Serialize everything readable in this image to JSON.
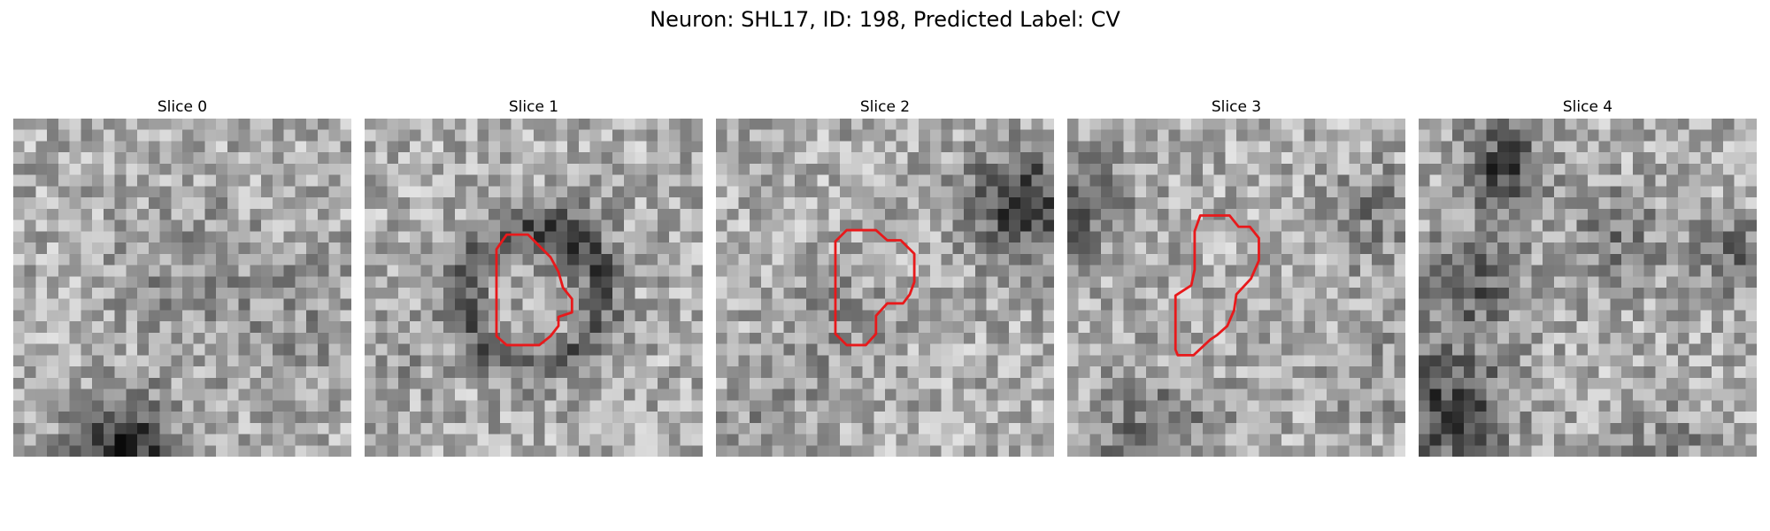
{
  "figure": {
    "title": "Neuron: SHL17, ID: 198, Predicted Label: CV"
  },
  "colors": {
    "contour": "#e8191b",
    "background": "#ffffff"
  },
  "slices": [
    {
      "title": "Slice 0",
      "seed": 11,
      "has_contour": false,
      "dark_blob": "bottom-left"
    },
    {
      "title": "Slice 1",
      "seed": 23,
      "has_contour": true,
      "dark_blob": "ring"
    },
    {
      "title": "Slice 2",
      "seed": 37,
      "has_contour": true,
      "dark_blob": "top-right"
    },
    {
      "title": "Slice 3",
      "seed": 51,
      "has_contour": true,
      "dark_blob": "left-edge"
    },
    {
      "title": "Slice 4",
      "seed": 67,
      "has_contour": false,
      "dark_blob": "left-streaks"
    }
  ]
}
